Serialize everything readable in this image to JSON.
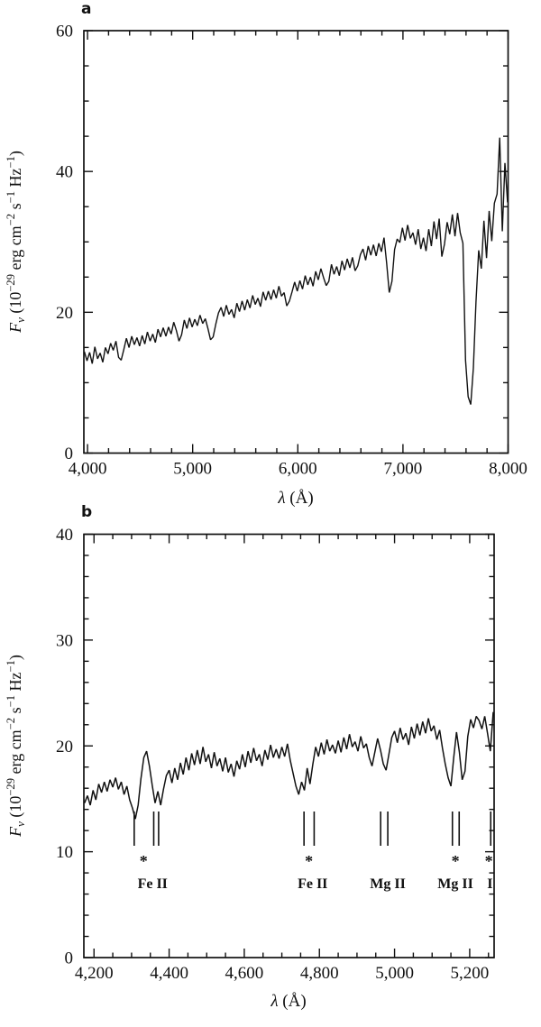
{
  "panels": [
    {
      "letter": "a"
    },
    {
      "letter": "b"
    }
  ],
  "colors": {
    "ink": "#111111",
    "background": "#ffffff"
  },
  "axis_labels": {
    "y_plain": "F_nu (10^-29 erg cm^-2 s^-1 Hz^-1)",
    "x_plain": "lambda (Angstrom)",
    "y_parts": [
      {
        "t": "F",
        "s": "it"
      },
      {
        "t": "ν",
        "s": "sub"
      },
      {
        "t": " (10"
      },
      {
        "t": "−29",
        "s": "sup"
      },
      {
        "t": " erg cm"
      },
      {
        "t": "−2",
        "s": "sup"
      },
      {
        "t": " s"
      },
      {
        "t": "−1",
        "s": "sup"
      },
      {
        "t": " Hz"
      },
      {
        "t": "−1",
        "s": "sup"
      },
      {
        "t": ")"
      }
    ],
    "x_parts": [
      {
        "t": "λ",
        "s": "it"
      },
      {
        "t": " (Å)"
      }
    ]
  },
  "chart_data": [
    {
      "type": "line",
      "panel_label": "a",
      "title": "",
      "xlabel": "λ (Å)",
      "ylabel": "Fν (10^−29 erg cm^−2 s^−1 Hz^−1)",
      "xlim": [
        3965,
        8000
      ],
      "ylim": [
        0,
        60
      ],
      "grid": false,
      "legend": false,
      "x_ticks_major": [
        4000,
        5000,
        6000,
        7000,
        8000
      ],
      "x_tick_labels": [
        "4,000",
        "5,000",
        "6,000",
        "7,000",
        "8,000"
      ],
      "x_minor_step": 200,
      "y_ticks_major": [
        0,
        20,
        40,
        60
      ],
      "y_tick_labels": [
        "0",
        "20",
        "40",
        "60"
      ],
      "y_minor_step": 5,
      "series": [
        {
          "name": "spectrum",
          "x_start": 3970,
          "x_step": 25,
          "values": [
            14.4,
            13.1,
            14.3,
            12.7,
            15.1,
            13.4,
            14.2,
            12.9,
            15.0,
            14.1,
            15.6,
            14.6,
            15.9,
            13.6,
            13.2,
            14.7,
            16.3,
            15.0,
            16.6,
            15.4,
            16.4,
            15.2,
            16.7,
            15.5,
            17.2,
            15.9,
            16.9,
            15.7,
            17.6,
            16.5,
            17.8,
            16.6,
            17.9,
            16.9,
            18.6,
            17.4,
            15.9,
            16.8,
            18.9,
            17.7,
            19.2,
            17.9,
            19.0,
            18.1,
            19.6,
            18.4,
            19.1,
            17.7,
            16.1,
            16.5,
            18.3,
            19.9,
            20.7,
            19.4,
            21.0,
            19.7,
            20.4,
            19.2,
            21.3,
            20.1,
            21.6,
            20.3,
            21.8,
            20.6,
            22.4,
            21.1,
            22.0,
            20.8,
            22.9,
            21.7,
            23.0,
            21.8,
            23.2,
            22.0,
            23.7,
            22.3,
            22.8,
            20.9,
            21.6,
            22.9,
            24.3,
            23.0,
            24.5,
            23.3,
            25.2,
            23.9,
            25.0,
            23.7,
            25.8,
            24.6,
            26.2,
            24.9,
            23.8,
            24.4,
            26.8,
            25.4,
            26.5,
            25.2,
            27.3,
            26.0,
            27.6,
            26.3,
            27.8,
            25.9,
            26.6,
            28.2,
            29.0,
            27.4,
            29.4,
            28.1,
            29.6,
            28.0,
            29.8,
            28.6,
            30.6,
            27.0,
            22.8,
            24.4,
            28.9,
            30.4,
            29.9,
            32.0,
            30.2,
            32.4,
            30.5,
            31.3,
            29.6,
            31.8,
            29.0,
            30.6,
            28.7,
            31.8,
            29.4,
            32.9,
            30.4,
            33.3,
            27.9,
            29.7,
            32.8,
            31.1,
            33.9,
            30.8,
            34.1,
            31.3,
            29.8,
            13.2,
            8.0,
            6.9,
            12.1,
            21.5,
            28.8,
            26.2,
            33.0,
            27.7,
            34.4,
            30.1,
            35.5,
            36.8,
            44.8,
            31.5,
            41.2,
            35.6
          ]
        }
      ]
    },
    {
      "type": "line",
      "panel_label": "b",
      "title": "",
      "xlabel": "λ (Å)",
      "ylabel": "Fν (10^−29 erg cm^−2 s^−1 Hz^−1)",
      "xlim": [
        4173,
        5265
      ],
      "ylim": [
        0,
        40
      ],
      "grid": false,
      "legend": false,
      "x_ticks_major": [
        4200,
        4400,
        4600,
        4800,
        5000,
        5200
      ],
      "x_tick_labels": [
        "4,200",
        "4,400",
        "4,600",
        "4,800",
        "5,000",
        "5,200"
      ],
      "x_minor_step": 50,
      "y_ticks_major": [
        0,
        10,
        20,
        30,
        40
      ],
      "y_tick_labels": [
        "0",
        "10",
        "20",
        "30",
        "40"
      ],
      "y_minor_step": 2,
      "series": [
        {
          "name": "spectrum",
          "x_start": 4175,
          "x_step": 7.5,
          "values": [
            14.6,
            15.3,
            14.4,
            15.8,
            14.9,
            16.4,
            15.6,
            16.6,
            15.7,
            16.8,
            16.1,
            17.0,
            15.9,
            16.6,
            15.4,
            16.2,
            14.9,
            14.1,
            13.1,
            14.4,
            16.9,
            18.9,
            19.5,
            18.1,
            16.3,
            14.6,
            15.7,
            14.4,
            15.9,
            17.2,
            17.7,
            16.5,
            17.9,
            16.8,
            18.4,
            17.3,
            18.9,
            17.7,
            19.3,
            18.2,
            19.6,
            18.3,
            19.9,
            18.5,
            19.2,
            17.9,
            19.4,
            18.1,
            18.8,
            17.6,
            18.9,
            17.5,
            18.3,
            17.1,
            18.6,
            17.8,
            19.2,
            18.0,
            19.5,
            18.4,
            19.8,
            18.6,
            19.2,
            18.1,
            19.6,
            18.7,
            20.1,
            18.9,
            19.7,
            18.8,
            19.9,
            19.0,
            20.2,
            18.6,
            17.4,
            16.2,
            15.4,
            16.6,
            15.8,
            17.9,
            16.4,
            18.3,
            19.9,
            19.0,
            20.3,
            19.2,
            20.6,
            19.5,
            20.1,
            19.3,
            20.5,
            19.4,
            20.8,
            19.7,
            21.1,
            19.9,
            20.4,
            19.5,
            20.9,
            19.8,
            20.2,
            18.9,
            18.1,
            19.4,
            20.7,
            19.6,
            18.3,
            17.7,
            19.2,
            20.8,
            21.4,
            20.3,
            21.7,
            20.6,
            21.2,
            20.1,
            21.8,
            20.7,
            22.1,
            21.0,
            22.3,
            21.2,
            22.6,
            21.4,
            21.9,
            20.6,
            21.5,
            19.8,
            18.3,
            17.0,
            16.2,
            18.9,
            21.3,
            19.4,
            16.8,
            17.6,
            20.9,
            22.5,
            21.7,
            22.8,
            22.4,
            21.6,
            22.8,
            21.2,
            19.5,
            23.2
          ]
        }
      ],
      "line_markers": [
        {
          "label": "Fe II",
          "label_x": 4356,
          "asterisk_x": 4332,
          "ticks": [
            4307,
            4359,
            4372
          ]
        },
        {
          "label": "Fe II",
          "label_x": 4782,
          "asterisk_x": 4772,
          "ticks": [
            4759,
            4786
          ]
        },
        {
          "label": "Mg II",
          "label_x": 4982,
          "asterisk_x": null,
          "ticks": [
            4963,
            4982
          ]
        },
        {
          "label": "Mg II",
          "label_x": 5162,
          "asterisk_x": 5162,
          "ticks": [
            5154,
            5172
          ]
        },
        {
          "label": "I",
          "label_x": 5254,
          "asterisk_x": 5251,
          "ticks": [
            5256
          ]
        }
      ]
    }
  ]
}
